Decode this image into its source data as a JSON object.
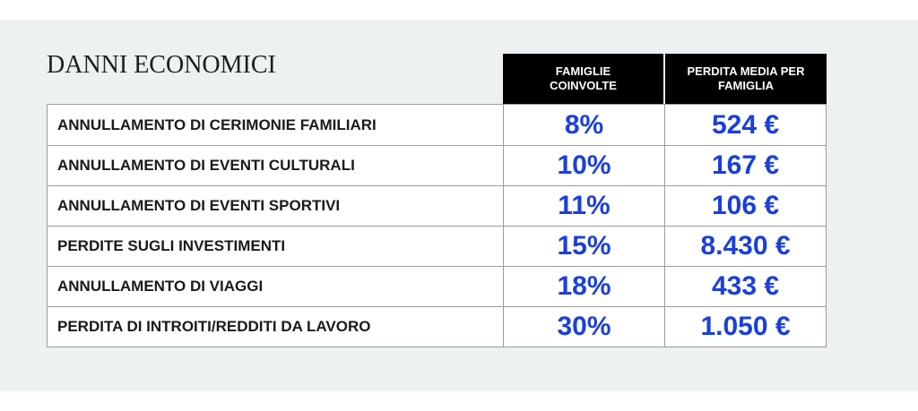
{
  "colors": {
    "panel_background": "#edf1f1",
    "header_background": "#000000",
    "header_text": "#ffffff",
    "value_text": "#1b3fdc",
    "grid_lines": "#9c9c9c"
  },
  "chart_data": {
    "type": "table",
    "title": "DANNI ECONOMICI",
    "columns": [
      "FAMIGLIE\nCOINVOLTE",
      "PERDITA MEDIA PER\nFAMIGLIA"
    ],
    "rows": [
      {
        "label": "ANNULLAMENTO DI CERIMONIE FAMILIARI",
        "values": [
          "8%",
          "524 €"
        ]
      },
      {
        "label": "ANNULLAMENTO DI EVENTI CULTURALI",
        "values": [
          "10%",
          "167 €"
        ]
      },
      {
        "label": "ANNULLAMENTO DI EVENTI SPORTIVI",
        "values": [
          "11%",
          "106 €"
        ]
      },
      {
        "label": "PERDITE SUGLI INVESTIMENTI",
        "values": [
          "15%",
          "8.430 €"
        ]
      },
      {
        "label": "ANNULLAMENTO DI VIAGGI",
        "values": [
          "18%",
          "433 €"
        ]
      },
      {
        "label": "PERDITA DI INTROITI/REDDITI DA LAVORO",
        "values": [
          "30%",
          "1.050 €"
        ]
      }
    ]
  }
}
